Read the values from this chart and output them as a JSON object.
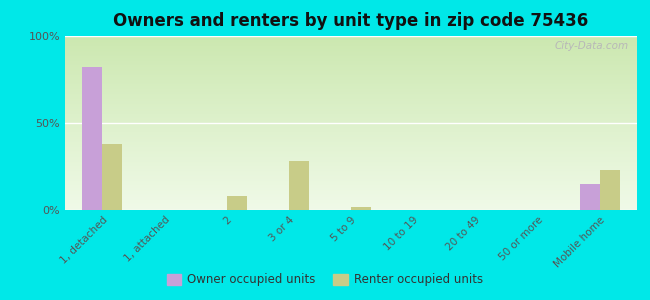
{
  "title": "Owners and renters by unit type in zip code 75436",
  "categories": [
    "1, detached",
    "1, attached",
    "2",
    "3 or 4",
    "5 to 9",
    "10 to 19",
    "20 to 49",
    "50 or more",
    "Mobile home"
  ],
  "owner_values": [
    82,
    0,
    0,
    0,
    0,
    0,
    0,
    0,
    15
  ],
  "renter_values": [
    38,
    0,
    8,
    28,
    2,
    0,
    0,
    0,
    23
  ],
  "owner_color": "#c8a0d8",
  "renter_color": "#c8cc88",
  "figure_bg": "#00e8e8",
  "plot_bg_top": "#cce8b0",
  "plot_bg_bottom": "#f0fae8",
  "ylim": [
    0,
    100
  ],
  "yticks": [
    0,
    50,
    100
  ],
  "ytick_labels": [
    "0%",
    "50%",
    "100%"
  ],
  "bar_width": 0.32,
  "legend_owner": "Owner occupied units",
  "legend_renter": "Renter occupied units",
  "title_fontsize": 12,
  "watermark": "City-Data.com"
}
